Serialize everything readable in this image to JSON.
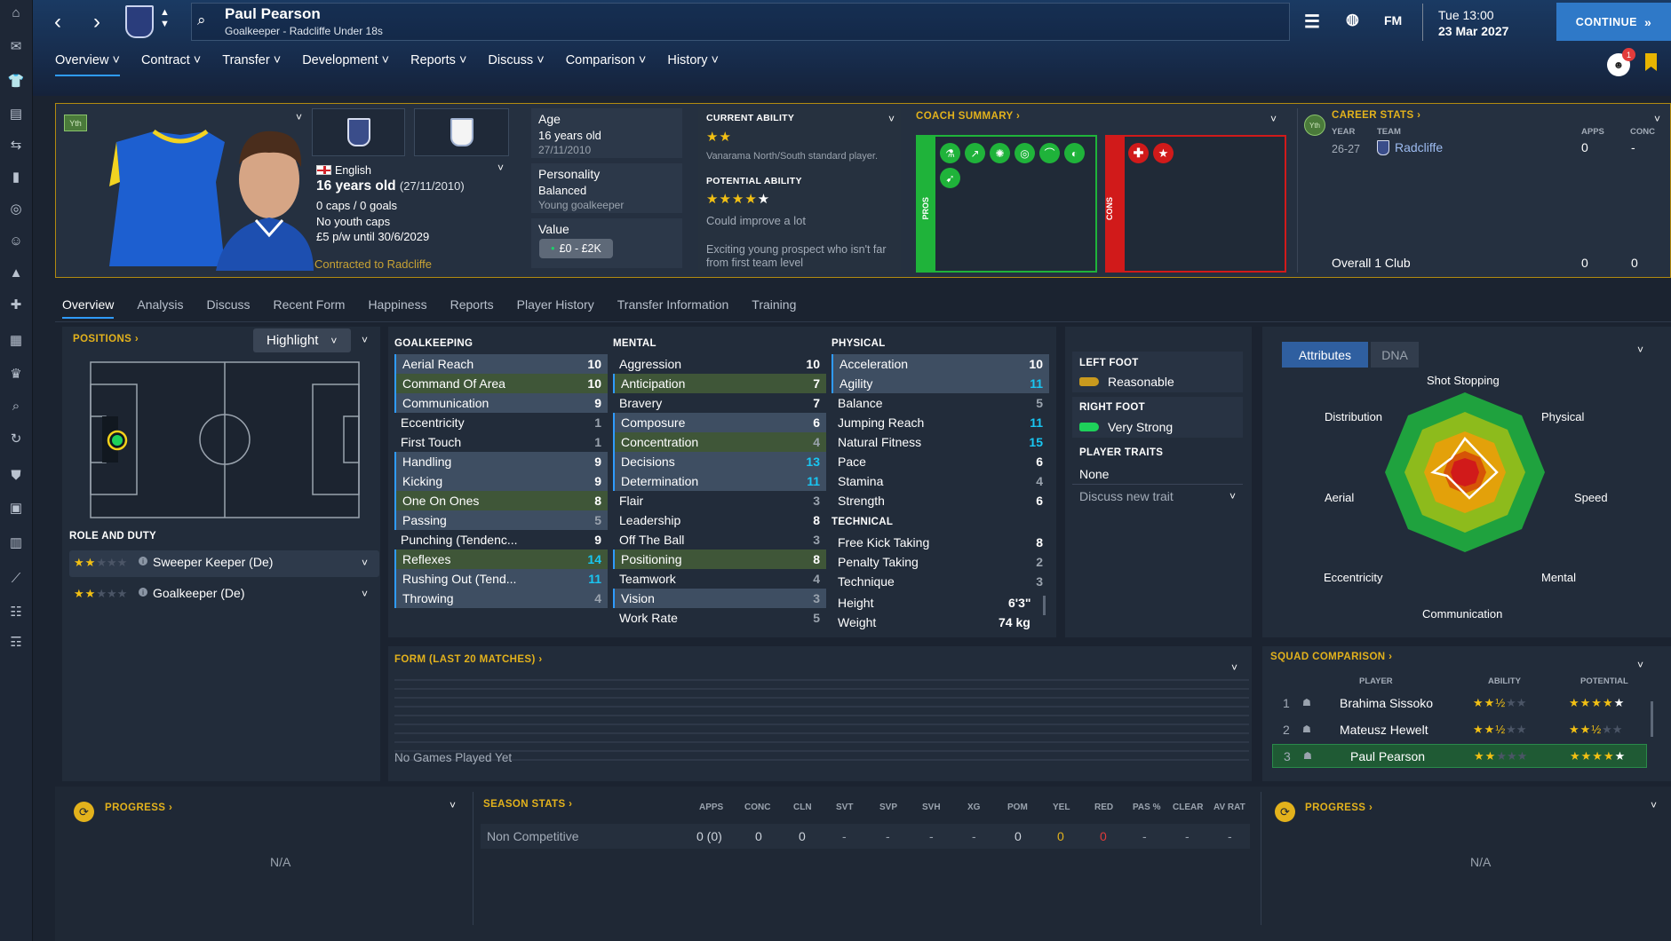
{
  "topbar": {
    "name": "Paul Pearson",
    "subtitle": "Goalkeeper - Radcliffe Under 18s",
    "fm": "FM",
    "time": "Tue 13:00",
    "date": "23 Mar 2027",
    "continue": "CONTINUE",
    "notif_count": "1"
  },
  "menu": [
    "Overview",
    "Contract",
    "Transfer",
    "Development",
    "Reports",
    "Discuss",
    "Comparison",
    "History"
  ],
  "profile": {
    "yth": "Yth",
    "nationality": "English",
    "age_line": "16 years old",
    "dob": "(27/11/2010)",
    "caps": "0 caps / 0 goals",
    "youth_caps": "No youth caps",
    "wage": "£5 p/w until 30/6/2029",
    "contract": "Contracted to Radcliffe",
    "age_label": "Age",
    "age_value": "16 years old",
    "age_dob": "27/11/2010",
    "personality_label": "Personality",
    "personality_value": "Balanced",
    "personality_sub": "Young goalkeeper",
    "value_label": "Value",
    "value_value": "£0 - £2K",
    "ca_label": "CURRENT ABILITY",
    "ca_stars": "★★",
    "ca_desc": "Vanarama North/South standard player.",
    "pa_label": "POTENTIAL ABILITY",
    "pa_stars": "★★★★",
    "pa_white": "★",
    "pa_desc": "Could improve a lot",
    "prospect": "Exciting young prospect who isn't far from first team level",
    "coach_title": "COACH SUMMARY",
    "pros": "PROS",
    "cons": "CONS",
    "career_title": "CAREER STATS",
    "career_yth": "Yth",
    "career_cols": [
      "YEAR",
      "TEAM",
      "APPS",
      "CONC"
    ],
    "career_year": "26-27",
    "career_team": "Radcliffe",
    "career_apps": "0",
    "career_conc": "-",
    "overall": "Overall 1 Club",
    "overall_apps": "0",
    "overall_conc": "0"
  },
  "subtabs": [
    "Overview",
    "Analysis",
    "Discuss",
    "Recent Form",
    "Happiness",
    "Reports",
    "Player History",
    "Transfer Information",
    "Training"
  ],
  "positions": {
    "title": "POSITIONS",
    "highlight": "Highlight",
    "role_title": "ROLE AND DUTY",
    "roles": [
      {
        "stars": "★★",
        "dim": "★★★",
        "name": "Sweeper Keeper (De)"
      },
      {
        "stars": "★★",
        "dim": "★★★",
        "name": "Goalkeeper (De)"
      }
    ]
  },
  "attributes": {
    "goalkeeping_title": "GOALKEEPING",
    "mental_title": "MENTAL",
    "physical_title": "PHYSICAL",
    "technical_title": "TECHNICAL",
    "goalkeeping": [
      {
        "n": "Aerial Reach",
        "v": "10"
      },
      {
        "n": "Command Of Area",
        "v": "10"
      },
      {
        "n": "Communication",
        "v": "9"
      },
      {
        "n": "Eccentricity",
        "v": "1"
      },
      {
        "n": "First Touch",
        "v": "1"
      },
      {
        "n": "Handling",
        "v": "9"
      },
      {
        "n": "Kicking",
        "v": "9"
      },
      {
        "n": "One On Ones",
        "v": "8"
      },
      {
        "n": "Passing",
        "v": "5"
      },
      {
        "n": "Punching (Tendenc...",
        "v": "9"
      },
      {
        "n": "Reflexes",
        "v": "14"
      },
      {
        "n": "Rushing Out (Tend...",
        "v": "11"
      },
      {
        "n": "Throwing",
        "v": "4"
      }
    ],
    "mental": [
      {
        "n": "Aggression",
        "v": "10"
      },
      {
        "n": "Anticipation",
        "v": "7"
      },
      {
        "n": "Bravery",
        "v": "7"
      },
      {
        "n": "Composure",
        "v": "6"
      },
      {
        "n": "Concentration",
        "v": "4"
      },
      {
        "n": "Decisions",
        "v": "13"
      },
      {
        "n": "Determination",
        "v": "11"
      },
      {
        "n": "Flair",
        "v": "3"
      },
      {
        "n": "Leadership",
        "v": "8"
      },
      {
        "n": "Off The Ball",
        "v": "3"
      },
      {
        "n": "Positioning",
        "v": "8"
      },
      {
        "n": "Teamwork",
        "v": "4"
      },
      {
        "n": "Vision",
        "v": "3"
      },
      {
        "n": "Work Rate",
        "v": "5"
      }
    ],
    "physical": [
      {
        "n": "Acceleration",
        "v": "10"
      },
      {
        "n": "Agility",
        "v": "11"
      },
      {
        "n": "Balance",
        "v": "5"
      },
      {
        "n": "Jumping Reach",
        "v": "11"
      },
      {
        "n": "Natural Fitness",
        "v": "15"
      },
      {
        "n": "Pace",
        "v": "6"
      },
      {
        "n": "Stamina",
        "v": "4"
      },
      {
        "n": "Strength",
        "v": "6"
      }
    ],
    "technical": [
      {
        "n": "Free Kick Taking",
        "v": "8"
      },
      {
        "n": "Penalty Taking",
        "v": "2"
      },
      {
        "n": "Technique",
        "v": "3"
      }
    ],
    "height_label": "Height",
    "height": "6'3\"",
    "weight_label": "Weight",
    "weight": "74 kg"
  },
  "feet": {
    "left_label": "LEFT FOOT",
    "left": "Reasonable",
    "right_label": "RIGHT FOOT",
    "right": "Very Strong",
    "traits_label": "PLAYER TRAITS",
    "traits": "None",
    "discuss": "Discuss new trait"
  },
  "radar": {
    "tab1": "Attributes",
    "tab2": "DNA",
    "labels": [
      "Shot Stopping",
      "Physical",
      "Speed",
      "Mental",
      "Communication",
      "Eccentricity",
      "Aerial",
      "Distribution"
    ]
  },
  "form": {
    "title": "FORM (LAST 20 MATCHES)",
    "empty": "No Games Played Yet"
  },
  "squad": {
    "title": "SQUAD COMPARISON",
    "cols": [
      "PLAYER",
      "ABILITY",
      "POTENTIAL"
    ],
    "rows": [
      {
        "rank": "1",
        "name": "Brahima Sissoko",
        "ab": "★★",
        "abh": "½",
        "abd": "★★",
        "po": "★★★★",
        "pow": "★"
      },
      {
        "rank": "2",
        "name": "Mateusz Hewelt",
        "ab": "★★",
        "abh": "½",
        "abd": "★★",
        "po": "★★",
        "poh": "½",
        "pod": "★★"
      },
      {
        "rank": "3",
        "name": "Paul Pearson",
        "ab": "★★",
        "abd": "★★★",
        "po": "★★★★",
        "pow": "★"
      }
    ]
  },
  "progress": {
    "title": "PROGRESS",
    "na": "N/A"
  },
  "season": {
    "title": "SEASON STATS",
    "cols": [
      "APPS",
      "CONC",
      "CLN",
      "SVT",
      "SVP",
      "SVH",
      "XG",
      "POM",
      "YEL",
      "RED",
      "PAS %",
      "CLEAR",
      "AV RAT"
    ],
    "row_label": "Non Competitive",
    "vals": [
      "0 (0)",
      "0",
      "0",
      "-",
      "-",
      "-",
      "-",
      "0",
      "0",
      "0",
      "-",
      "-",
      "-"
    ]
  },
  "colors": {
    "accent": "#2f9bff",
    "gold": "#e3b21c",
    "pros": "#1fb33a",
    "cons": "#d11a1a",
    "highlight_row": "#3f5638"
  }
}
